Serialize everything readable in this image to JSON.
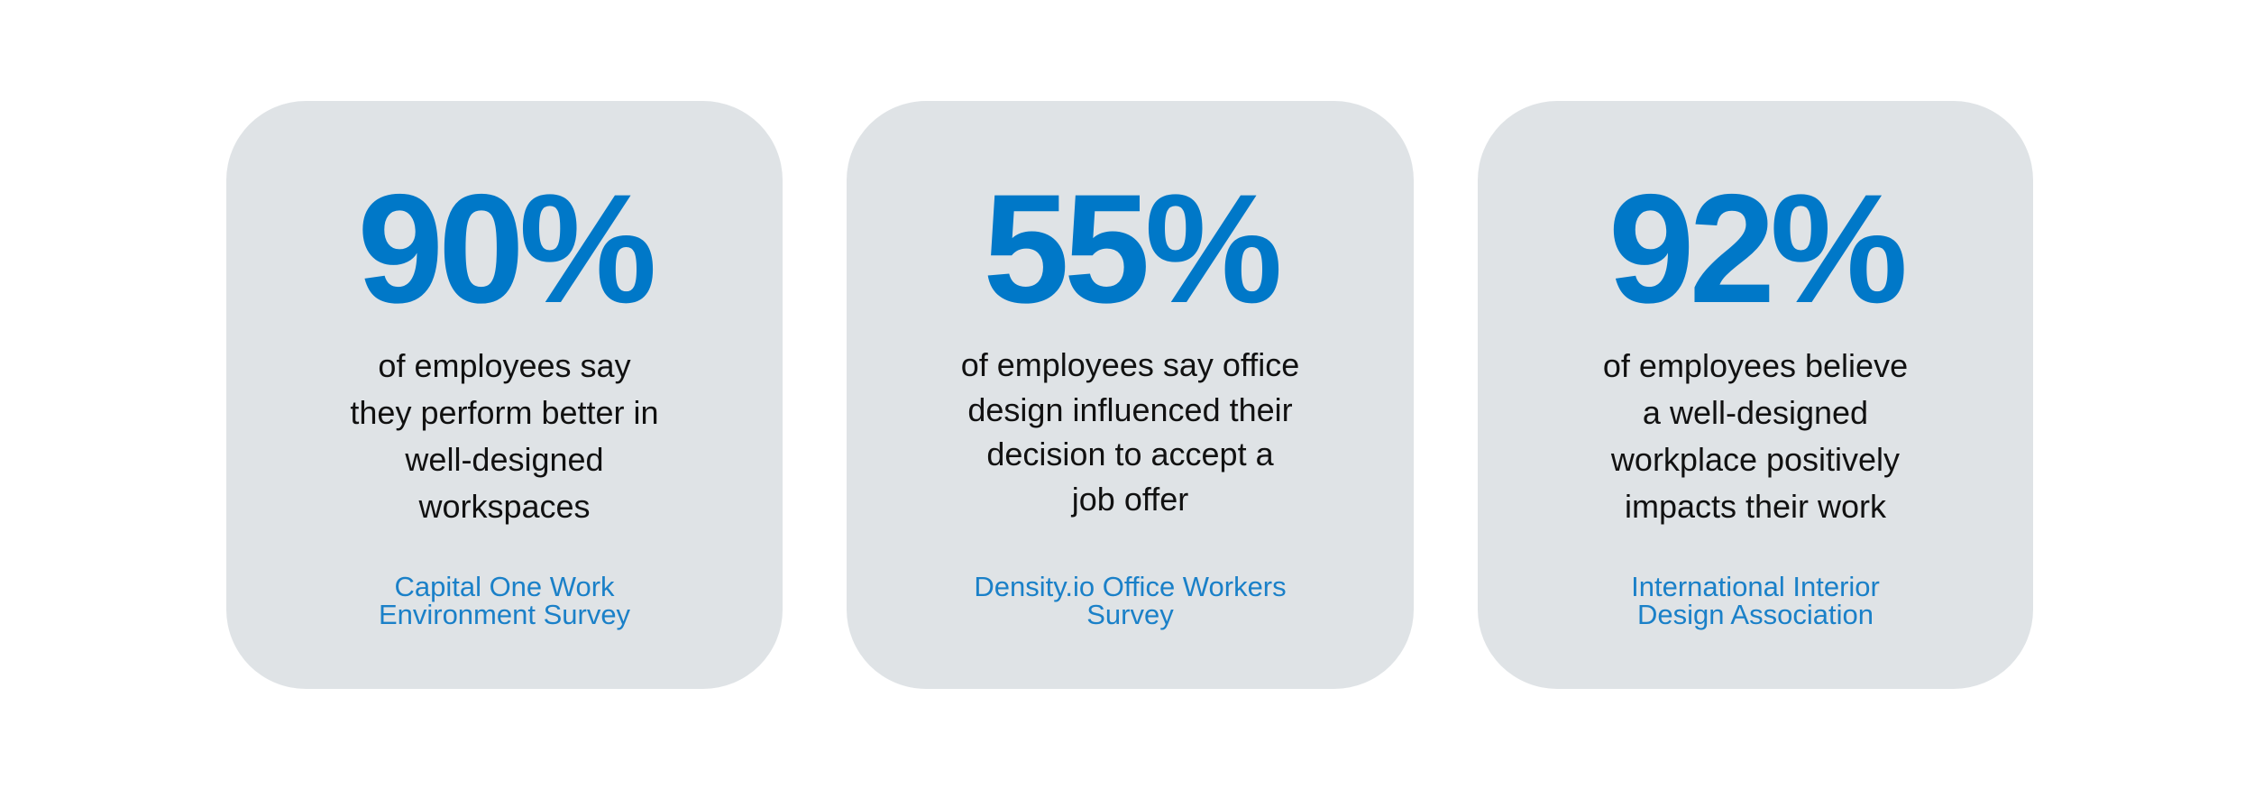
{
  "cards": [
    {
      "stat": "90%",
      "description_lines": [
        "of employees say",
        "they perform better in",
        "well-designed",
        "workspaces"
      ],
      "source_lines": [
        "Capital One Work",
        "Environment Survey"
      ]
    },
    {
      "stat": "55%",
      "description_lines": [
        "of employees say office",
        "design influenced their",
        "decision to accept a",
        "job offer"
      ],
      "source_lines": [
        "Density.io Office Workers",
        "Survey"
      ]
    },
    {
      "stat": "92%",
      "description_lines": [
        "of employees believe",
        "a well-designed",
        "workplace positively",
        "impacts their work"
      ],
      "source_lines": [
        "International Interior",
        "Design Association"
      ]
    }
  ],
  "colors": {
    "accent": "#0078c8",
    "source_text": "#1a80c8",
    "card_background": "#dfe3e6",
    "body_text": "#111111"
  }
}
